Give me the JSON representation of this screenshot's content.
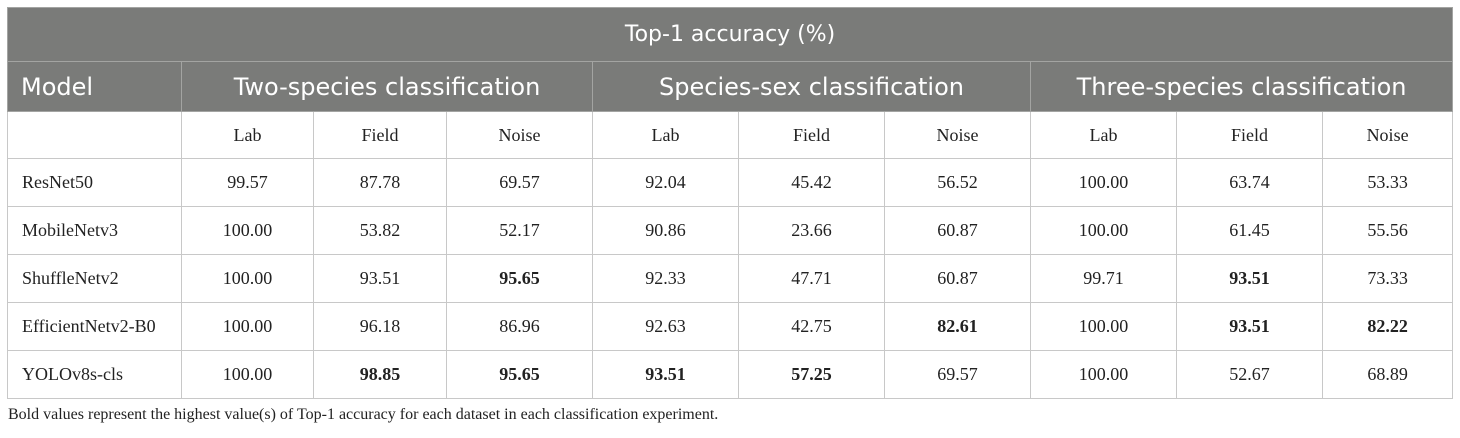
{
  "table": {
    "title": "Top-1 accuracy (%)",
    "model_header": "Model",
    "groups": [
      "Two-species classification",
      "Species-sex classification",
      "Three-species classification"
    ],
    "subcols": [
      "Lab",
      "Field",
      "Noise",
      "Lab",
      "Field",
      "Noise",
      "Lab",
      "Field",
      "Noise"
    ],
    "rows": [
      {
        "model": "ResNet50",
        "values": [
          "99.57",
          "87.78",
          "69.57",
          "92.04",
          "45.42",
          "56.52",
          "100.00",
          "63.74",
          "53.33"
        ],
        "bold": []
      },
      {
        "model": "MobileNetv3",
        "values": [
          "100.00",
          "53.82",
          "52.17",
          "90.86",
          "23.66",
          "60.87",
          "100.00",
          "61.45",
          "55.56"
        ],
        "bold": []
      },
      {
        "model": "ShuffleNetv2",
        "values": [
          "100.00",
          "93.51",
          "95.65",
          "92.33",
          "47.71",
          "60.87",
          "99.71",
          "93.51",
          "73.33"
        ],
        "bold": [
          2,
          7
        ]
      },
      {
        "model": "EfficientNetv2-B0",
        "values": [
          "100.00",
          "96.18",
          "86.96",
          "92.63",
          "42.75",
          "82.61",
          "100.00",
          "93.51",
          "82.22"
        ],
        "bold": [
          5,
          7,
          8
        ]
      },
      {
        "model": "YOLOv8s-cls",
        "values": [
          "100.00",
          "98.85",
          "95.65",
          "93.51",
          "57.25",
          "69.57",
          "100.00",
          "52.67",
          "68.89"
        ],
        "bold": [
          1,
          2,
          3,
          4
        ]
      }
    ]
  },
  "footnote": "Bold values represent the highest value(s) of Top-1 accuracy for each dataset in each classification experiment."
}
